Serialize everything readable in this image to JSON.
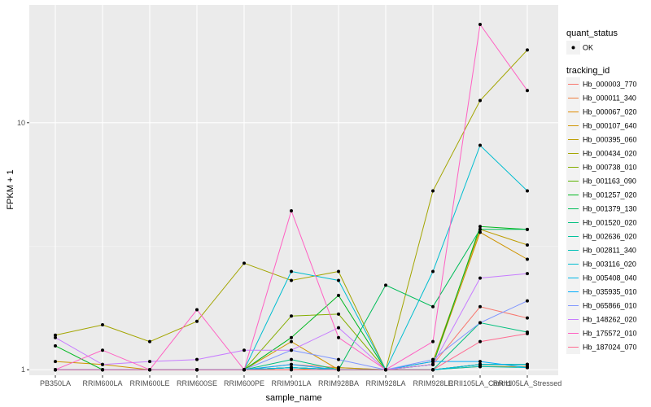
{
  "chart_data": {
    "type": "line",
    "title": "",
    "xlabel": "sample_name",
    "ylabel": "FPKM + 1",
    "y_scale": "log10",
    "ylim": [
      0.95,
      30
    ],
    "y_ticks": [
      1,
      10
    ],
    "y_tick_labels": [
      "1",
      "10"
    ],
    "grid": true,
    "legend_position": "right",
    "categories": [
      "PB350LA",
      "RRIM600LA",
      "RRIM600LE",
      "RRIM600SE",
      "RRIM600PE",
      "RRIM901LA",
      "RRIM928BA",
      "RRIM928LA",
      "RRIM928LE",
      "RRII105LA_Control",
      "RRII105LA_Stressed"
    ],
    "point_legend": {
      "title": "quant_status",
      "items": [
        "OK"
      ]
    },
    "line_legend_title": "tracking_id",
    "series": [
      {
        "name": "Hb_000003_770",
        "color": "#F8766D",
        "values": [
          1.0,
          1.0,
          1.0,
          1.0,
          1.0,
          1.05,
          1.02,
          1.0,
          1.05,
          1.8,
          1.62
        ]
      },
      {
        "name": "Hb_000011_340",
        "color": "#EE8043",
        "values": [
          1.0,
          1.0,
          1.0,
          1.0,
          1.0,
          1.02,
          1.0,
          1.0,
          1.0,
          1.05,
          1.05
        ]
      },
      {
        "name": "Hb_000067_020",
        "color": "#E08B00",
        "values": [
          1.0,
          1.0,
          1.0,
          1.0,
          1.0,
          1.02,
          1.0,
          1.0,
          1.0,
          1.03,
          1.03
        ]
      },
      {
        "name": "Hb_000107_640",
        "color": "#CF9400",
        "values": [
          1.08,
          1.05,
          1.0,
          1.0,
          1.0,
          1.3,
          1.0,
          1.0,
          1.05,
          3.6,
          2.8
        ]
      },
      {
        "name": "Hb_000395_060",
        "color": "#BD9D00",
        "values": [
          1.0,
          1.0,
          1.0,
          1.0,
          1.0,
          1.0,
          1.02,
          1.0,
          1.08,
          3.7,
          3.2
        ]
      },
      {
        "name": "Hb_000434_020",
        "color": "#A3A500",
        "values": [
          1.38,
          1.52,
          1.3,
          1.57,
          2.7,
          2.3,
          2.5,
          1.0,
          5.3,
          12.3,
          19.7
        ]
      },
      {
        "name": "Hb_000738_010",
        "color": "#85AD00",
        "values": [
          1.0,
          1.0,
          1.0,
          1.0,
          1.0,
          1.65,
          1.68,
          1.0,
          1.0,
          1.05,
          1.05
        ]
      },
      {
        "name": "Hb_001163_090",
        "color": "#5BB300",
        "values": [
          1.0,
          1.0,
          1.0,
          1.0,
          1.0,
          1.02,
          1.0,
          1.0,
          1.0,
          1.05,
          1.05
        ]
      },
      {
        "name": "Hb_001257_020",
        "color": "#00B81F",
        "values": [
          1.25,
          1.0,
          1.0,
          1.0,
          1.0,
          1.35,
          2.0,
          1.0,
          1.05,
          3.8,
          3.7
        ]
      },
      {
        "name": "Hb_001379_130",
        "color": "#00BC59",
        "values": [
          1.0,
          1.0,
          1.0,
          1.0,
          1.0,
          1.02,
          1.0,
          2.2,
          1.8,
          3.7,
          3.7
        ]
      },
      {
        "name": "Hb_001520_020",
        "color": "#00BF7D",
        "values": [
          1.0,
          1.0,
          1.0,
          1.0,
          1.0,
          1.1,
          1.0,
          1.0,
          1.0,
          1.55,
          1.42
        ]
      },
      {
        "name": "Hb_002636_020",
        "color": "#00C19C",
        "values": [
          1.0,
          1.0,
          1.0,
          1.0,
          1.0,
          1.02,
          1.0,
          1.0,
          1.0,
          1.05,
          1.05
        ]
      },
      {
        "name": "Hb_002811_340",
        "color": "#00C0B7",
        "values": [
          1.0,
          1.0,
          1.0,
          1.0,
          1.0,
          1.02,
          1.0,
          1.0,
          1.0,
          1.03,
          1.02
        ]
      },
      {
        "name": "Hb_003116_020",
        "color": "#00BDD0",
        "values": [
          1.0,
          1.0,
          1.0,
          1.0,
          1.0,
          2.5,
          2.3,
          1.0,
          2.5,
          8.1,
          5.3
        ]
      },
      {
        "name": "Hb_005408_040",
        "color": "#00B6E6",
        "values": [
          1.0,
          1.0,
          1.0,
          1.0,
          1.0,
          1.02,
          1.0,
          1.0,
          1.0,
          1.05,
          1.05
        ]
      },
      {
        "name": "Hb_035935_010",
        "color": "#00ACFC",
        "values": [
          1.0,
          1.0,
          1.0,
          1.0,
          1.0,
          1.05,
          1.0,
          1.0,
          1.08,
          1.08,
          1.02
        ]
      },
      {
        "name": "Hb_065866_010",
        "color": "#7F96FF",
        "values": [
          1.0,
          1.0,
          1.0,
          1.0,
          1.0,
          1.2,
          1.1,
          1.0,
          1.1,
          1.55,
          1.9
        ]
      },
      {
        "name": "Hb_148262_020",
        "color": "#C77CFF",
        "values": [
          1.35,
          1.05,
          1.08,
          1.1,
          1.2,
          1.2,
          1.48,
          1.0,
          1.05,
          2.35,
          2.45
        ]
      },
      {
        "name": "Hb_175572_010",
        "color": "#FF61C3",
        "values": [
          1.0,
          1.2,
          1.0,
          1.75,
          1.0,
          4.4,
          1.35,
          1.0,
          1.3,
          25.0,
          13.5
        ]
      },
      {
        "name": "Hb_187024_070",
        "color": "#FF6C91",
        "values": [
          1.0,
          1.0,
          1.0,
          1.0,
          1.0,
          1.0,
          1.0,
          1.0,
          1.0,
          1.3,
          1.4
        ]
      }
    ]
  }
}
